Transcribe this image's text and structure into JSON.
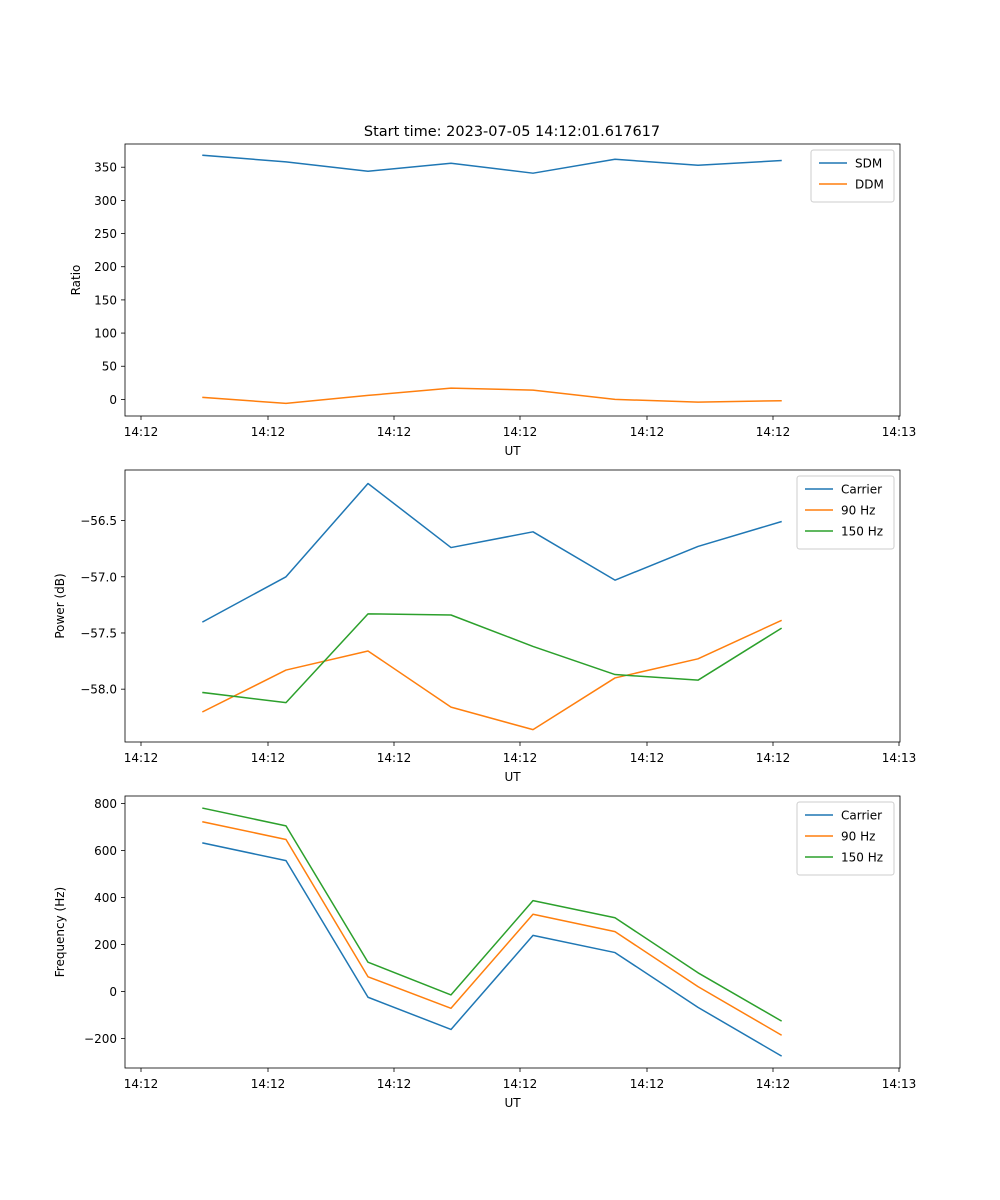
{
  "figure_title": "Start time: 2023-07-05 14:12:01.617617",
  "chart_data": [
    {
      "type": "line",
      "xlabel": "UT",
      "ylabel": "Ratio",
      "x_tick_labels": [
        "14:12",
        "14:12",
        "14:12",
        "14:12",
        "14:12",
        "14:12",
        "14:12"
      ],
      "x_tick_last_label": "14:13",
      "ylim": [
        -25,
        385
      ],
      "yticks": [
        0,
        50,
        100,
        150,
        200,
        250,
        300,
        350
      ],
      "ytick_labels": [
        "0",
        "50",
        "100",
        "150",
        "200",
        "250",
        "300",
        "350"
      ],
      "legend": "top-right",
      "series": [
        {
          "name": "SDM",
          "color": "#1f77b4",
          "values": [
            368,
            358,
            344,
            356,
            341,
            362,
            353,
            360
          ]
        },
        {
          "name": "DDM",
          "color": "#ff7f0e",
          "values": [
            3,
            -6,
            6,
            17,
            14,
            0,
            -4,
            -2
          ]
        }
      ]
    },
    {
      "type": "line",
      "xlabel": "UT",
      "ylabel": "Power (dB)",
      "x_tick_labels": [
        "14:12",
        "14:12",
        "14:12",
        "14:12",
        "14:12",
        "14:12",
        "14:12"
      ],
      "x_tick_last_label": "14:13",
      "ylim": [
        -58.47,
        -56.05
      ],
      "yticks": [
        -58.0,
        -57.5,
        -57.0,
        -56.5
      ],
      "ytick_labels": [
        "−58.0",
        "−57.5",
        "−57.0",
        "−56.5"
      ],
      "legend": "top-right",
      "series": [
        {
          "name": "Carrier",
          "color": "#1f77b4",
          "values": [
            -57.4,
            -57.0,
            -56.17,
            -56.74,
            -56.6,
            -57.03,
            -56.73,
            -56.51
          ]
        },
        {
          "name": "90 Hz",
          "color": "#ff7f0e",
          "values": [
            -58.2,
            -57.83,
            -57.66,
            -58.16,
            -58.36,
            -57.9,
            -57.73,
            -57.39
          ]
        },
        {
          "name": "150 Hz",
          "color": "#2ca02c",
          "values": [
            -58.03,
            -58.12,
            -57.33,
            -57.34,
            -57.62,
            -57.87,
            -57.92,
            -57.46
          ]
        }
      ]
    },
    {
      "type": "line",
      "xlabel": "UT",
      "ylabel": "Frequency (Hz)",
      "x_tick_labels": [
        "14:12",
        "14:12",
        "14:12",
        "14:12",
        "14:12",
        "14:12",
        "14:12"
      ],
      "x_tick_last_label": "14:13",
      "ylim": [
        -325,
        832
      ],
      "yticks": [
        -200,
        0,
        200,
        400,
        600,
        800
      ],
      "ytick_labels": [
        "−200",
        "0",
        "200",
        "400",
        "600",
        "800"
      ],
      "legend": "top-right",
      "series": [
        {
          "name": "Carrier",
          "color": "#1f77b4",
          "values": [
            632,
            557,
            -24,
            -161,
            239,
            166,
            -67,
            -273
          ]
        },
        {
          "name": "90 Hz",
          "color": "#ff7f0e",
          "values": [
            722,
            647,
            63,
            -71,
            329,
            255,
            21,
            -184
          ]
        },
        {
          "name": "150 Hz",
          "color": "#2ca02c",
          "values": [
            780,
            705,
            125,
            -14,
            387,
            314,
            80,
            -124
          ]
        }
      ]
    }
  ]
}
